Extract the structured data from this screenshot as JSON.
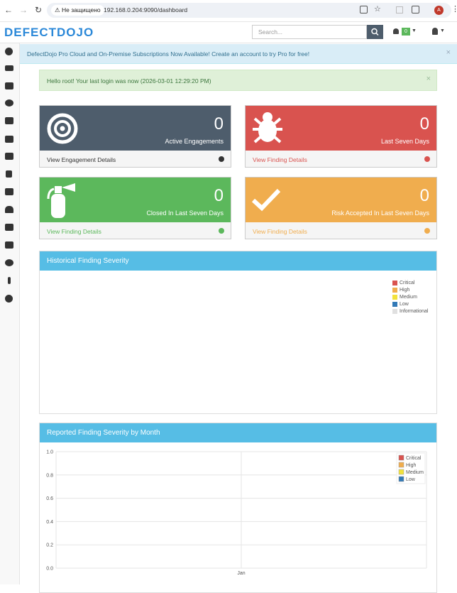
{
  "browser": {
    "security": "Не защищено",
    "url": "192.168.0.204:9090/dashboard",
    "profile": "A"
  },
  "header": {
    "logo": "DEFECTDOJO",
    "search_placeholder": "Search...",
    "notifications": 0
  },
  "banner": "DefectDojo Pro Cloud and On-Premise Subscriptions Now Available! Create an account to try Pro for free!",
  "alert": "Hello root! Your last login was now (2026-03-01 12:29:20 PM)",
  "cards": [
    {
      "count": 0,
      "label": "Active Engagements",
      "link": "View Engagement Details",
      "color": "#4e5d6c",
      "link_color": "#333333"
    },
    {
      "count": 0,
      "label": "Last Seven Days",
      "link": "View Finding Details",
      "color": "#d9534f",
      "link_color": "#d9534f"
    },
    {
      "count": 0,
      "label": "Closed In Last Seven Days",
      "link": "View Finding Details",
      "color": "#5cb85c",
      "link_color": "#5cb85c"
    },
    {
      "count": 0,
      "label": "Risk Accepted In Last Seven Days",
      "link": "View Finding Details",
      "color": "#f0ad4e",
      "link_color": "#f0ad4e"
    }
  ],
  "historical_panel": {
    "title": "Historical Finding Severity",
    "legend": [
      {
        "name": "Critical",
        "color": "#d9534f"
      },
      {
        "name": "High",
        "color": "#f0ad4e"
      },
      {
        "name": "Medium",
        "color": "#f2e23c"
      },
      {
        "name": "Low",
        "color": "#337ab7"
      },
      {
        "name": "Informational",
        "color": "#e0e0e0"
      }
    ]
  },
  "monthly_panel": {
    "title": "Reported Finding Severity by Month",
    "categories": [
      "Jan"
    ],
    "ylim": [
      0,
      1
    ],
    "yticks": [
      {
        "value": 0,
        "label": "0.0"
      },
      {
        "value": 0.2,
        "label": "0.2"
      },
      {
        "value": 0.4,
        "label": "0.4"
      },
      {
        "value": 0.6,
        "label": "0.6"
      },
      {
        "value": 0.8,
        "label": "0.8"
      },
      {
        "value": 1,
        "label": "1.0"
      }
    ],
    "legend": [
      {
        "name": "Critical",
        "color": "#d9534f"
      },
      {
        "name": "High",
        "color": "#f0ad4e"
      },
      {
        "name": "Medium",
        "color": "#f2e23c"
      },
      {
        "name": "Low",
        "color": "#337ab7"
      }
    ]
  }
}
